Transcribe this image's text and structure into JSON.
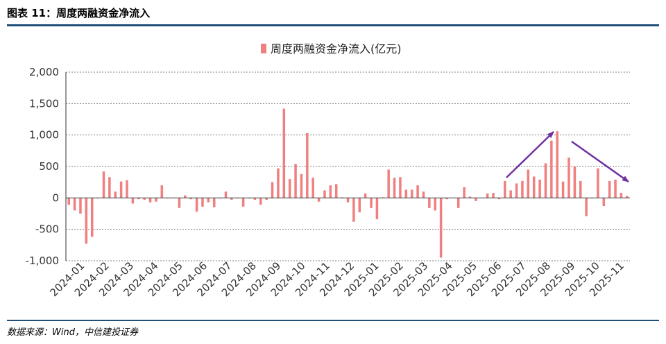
{
  "figure": {
    "title": "图表 11：周度两融资金净流入",
    "source": "数据来源：Wind，中信建投证券"
  },
  "colors": {
    "bar": "#f08080",
    "arrow": "#7030a0",
    "grid": "#7f7f7f",
    "rule": "#1f4e79"
  },
  "chart_data": {
    "type": "bar",
    "legend": "周度两融资金净流入(亿元)",
    "legend_position": "top-center",
    "grid": true,
    "ylim": [
      -1000,
      2000
    ],
    "y_ticks": [
      "2,000",
      "1,500",
      "1,000",
      "500",
      "0",
      "-500",
      "-1,000"
    ],
    "x_tick_labels": [
      "2024-01",
      "2024-02",
      "2024-03",
      "2024-04",
      "2024-05",
      "2024-06",
      "2024-07",
      "2024-08",
      "2024-09",
      "2024-10",
      "2024-11",
      "2024-12",
      "2025-01",
      "2025-02",
      "2025-03",
      "2025-04",
      "2025-05",
      "2025-06",
      "2025-07",
      "2025-08",
      "2025-09",
      "2025-10",
      "2025-11"
    ],
    "weekly_values": [
      -110,
      -200,
      -250,
      -730,
      -620,
      -10,
      420,
      330,
      100,
      260,
      280,
      -90,
      -20,
      -30,
      -70,
      -60,
      200,
      -10,
      -5,
      -160,
      40,
      -20,
      -220,
      -140,
      -70,
      -150,
      -10,
      100,
      -30,
      -10,
      -140,
      -10,
      -30,
      -110,
      -30,
      250,
      470,
      1420,
      300,
      540,
      380,
      1030,
      320,
      -60,
      120,
      200,
      220,
      10,
      -70,
      -380,
      -230,
      70,
      -160,
      -340,
      10,
      450,
      320,
      330,
      130,
      130,
      200,
      100,
      -160,
      -200,
      -950,
      -20,
      0,
      -160,
      170,
      20,
      -50,
      0,
      70,
      80,
      -20,
      270,
      120,
      230,
      270,
      450,
      340,
      290,
      550,
      910,
      1060,
      260,
      640,
      500,
      270,
      -290,
      -10,
      470,
      -130,
      270,
      290,
      80,
      30
    ]
  },
  "annotations": [
    {
      "type": "arrow",
      "name": "trend-arrow-up"
    },
    {
      "type": "arrow",
      "name": "trend-arrow-down"
    }
  ]
}
